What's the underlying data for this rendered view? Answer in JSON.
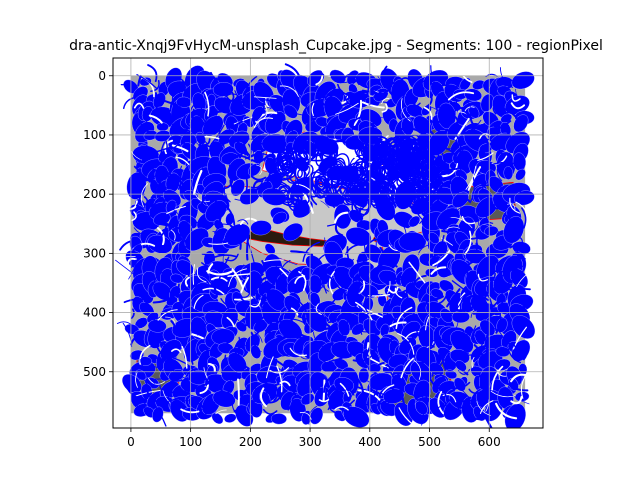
{
  "chart_data": {
    "type": "image",
    "title": "dra-antic-Xnqj9FvHycM-unsplash_Cupcake.jpg - Segments: 100 - regionPixel",
    "xlabel": "",
    "ylabel": "",
    "xlim": [
      -30,
      690
    ],
    "ylim": [
      595,
      -30
    ],
    "y_inverted": true,
    "grid": true,
    "x_ticks": [
      0,
      100,
      200,
      300,
      400,
      500,
      600
    ],
    "y_ticks": [
      0,
      100,
      200,
      300,
      400,
      500
    ],
    "image_extent": {
      "x": [
        0,
        660
      ],
      "y": [
        0,
        570
      ]
    },
    "colors": {
      "overlay_stroke": "#0000ff",
      "segment_boundary": "#ff0000",
      "light_region": "#c8c8c8",
      "mid_region": "#a9a9a9",
      "dark_region": "#595959",
      "darkest_region": "#2a1a10",
      "white_region": "#ffffff",
      "grid": "#b0b0b0",
      "axis": "#000000"
    },
    "regions": [
      {
        "tone": "mid_region",
        "points": [
          [
            0,
            0
          ],
          [
            660,
            0
          ],
          [
            660,
            570
          ],
          [
            0,
            570
          ]
        ]
      },
      {
        "tone": "light_region",
        "points": [
          [
            120,
            195
          ],
          [
            170,
            185
          ],
          [
            220,
            190
          ],
          [
            260,
            175
          ],
          [
            300,
            180
          ],
          [
            350,
            190
          ],
          [
            410,
            200
          ],
          [
            460,
            220
          ],
          [
            520,
            230
          ],
          [
            500,
            260
          ],
          [
            450,
            275
          ],
          [
            420,
            290
          ],
          [
            430,
            310
          ],
          [
            430,
            385
          ],
          [
            400,
            365
          ],
          [
            380,
            320
          ],
          [
            330,
            320
          ],
          [
            280,
            318
          ],
          [
            220,
            300
          ],
          [
            180,
            275
          ],
          [
            150,
            255
          ],
          [
            125,
            230
          ]
        ]
      },
      {
        "tone": "white_region",
        "points": [
          [
            230,
            120
          ],
          [
            290,
            95
          ],
          [
            360,
            110
          ],
          [
            420,
            150
          ],
          [
            460,
            160
          ],
          [
            520,
            170
          ],
          [
            560,
            185
          ],
          [
            520,
            215
          ],
          [
            460,
            215
          ],
          [
            400,
            200
          ],
          [
            340,
            185
          ],
          [
            270,
            170
          ],
          [
            220,
            160
          ]
        ]
      },
      {
        "tone": "dark_region",
        "points": [
          [
            500,
            80
          ],
          [
            560,
            80
          ],
          [
            570,
            130
          ],
          [
            520,
            160
          ],
          [
            490,
            130
          ]
        ]
      },
      {
        "tone": "dark_region",
        "points": [
          [
            545,
            190
          ],
          [
            640,
            180
          ],
          [
            645,
            240
          ],
          [
            570,
            245
          ],
          [
            550,
            220
          ]
        ]
      },
      {
        "tone": "dark_region",
        "points": [
          [
            440,
            490
          ],
          [
            530,
            480
          ],
          [
            545,
            570
          ],
          [
            440,
            570
          ]
        ]
      },
      {
        "tone": "dark_region",
        "points": [
          [
            10,
            480
          ],
          [
            60,
            470
          ],
          [
            80,
            520
          ],
          [
            30,
            540
          ],
          [
            10,
            520
          ]
        ]
      },
      {
        "tone": "darkest_region",
        "points": [
          [
            410,
            268
          ],
          [
            430,
            262
          ],
          [
            470,
            270
          ],
          [
            460,
            280
          ],
          [
            420,
            284
          ],
          [
            405,
            278
          ]
        ]
      },
      {
        "tone": "darkest_region",
        "points": [
          [
            195,
            265
          ],
          [
            220,
            258
          ],
          [
            260,
            268
          ],
          [
            300,
            275
          ],
          [
            340,
            280
          ],
          [
            320,
            288
          ],
          [
            270,
            286
          ],
          [
            220,
            280
          ],
          [
            195,
            275
          ]
        ]
      }
    ]
  }
}
